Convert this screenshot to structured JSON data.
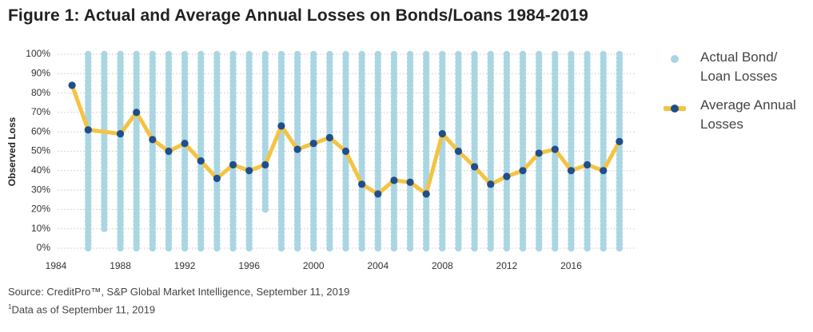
{
  "title": "Figure 1: Actual and Average Annual Losses on Bonds/Loans 1984-2019",
  "source": "Source: CreditPro™, S&P Global Market Intelligence, September 11, 2019",
  "footnote_mark": "1",
  "footnote": "Data as of September 11, 2019",
  "legend": {
    "scatter_label": "Actual Bond/\nLoan Losses",
    "line_label": "Average Annual\nLosses"
  },
  "colors": {
    "scatter": "#a9d6e2",
    "line": "#f5c342",
    "marker": "#1f4e8c"
  },
  "chart_data": {
    "type": "line",
    "title": "Figure 1: Actual and Average Annual Losses on Bonds/Loans 1984-2019",
    "xlabel": "",
    "ylabel": "Observed Loss",
    "xlim": [
      1984,
      2020
    ],
    "ylim": [
      0,
      100
    ],
    "x_ticks": [
      1984,
      1988,
      1992,
      1996,
      2000,
      2004,
      2008,
      2012,
      2016
    ],
    "y_ticks": [
      "0%",
      "10%",
      "20%",
      "30%",
      "40%",
      "50%",
      "60%",
      "70%",
      "80%",
      "90%",
      "100%"
    ],
    "grid": "horizontal dotted",
    "legend_position": "right",
    "series": [
      {
        "name": "Average Annual Losses",
        "x": [
          1985,
          1986,
          1988,
          1989,
          1990,
          1991,
          1992,
          1993,
          1994,
          1995,
          1996,
          1997,
          1998,
          1999,
          2000,
          2001,
          2002,
          2003,
          2004,
          2005,
          2006,
          2007,
          2008,
          2009,
          2010,
          2011,
          2012,
          2013,
          2014,
          2015,
          2016,
          2017,
          2018,
          2019
        ],
        "values": [
          84,
          61,
          59,
          70,
          56,
          50,
          54,
          45,
          36,
          43,
          40,
          43,
          63,
          51,
          54,
          57,
          50,
          33,
          28,
          35,
          34,
          28,
          59,
          50,
          42,
          33,
          37,
          40,
          49,
          51,
          40,
          43,
          40,
          55
        ]
      },
      {
        "name": "Actual Bond/ Loan Losses",
        "type": "scatter",
        "x": [
          1986,
          1987,
          1988,
          1989,
          1990,
          1991,
          1992,
          1993,
          1994,
          1995,
          1996,
          1997,
          1998,
          1999,
          2000,
          2001,
          2002,
          2003,
          2004,
          2005,
          2006,
          2007,
          2008,
          2009,
          2010,
          2011,
          2012,
          2013,
          2014,
          2015,
          2016,
          2017,
          2018,
          2019
        ],
        "range_low": [
          0,
          10,
          0,
          0,
          0,
          0,
          0,
          0,
          0,
          0,
          0,
          20,
          0,
          0,
          0,
          0,
          0,
          0,
          0,
          0,
          0,
          0,
          0,
          0,
          0,
          0,
          0,
          0,
          0,
          0,
          0,
          0,
          0,
          0
        ],
        "range_high": [
          100,
          100,
          100,
          100,
          100,
          100,
          100,
          100,
          100,
          100,
          100,
          100,
          100,
          100,
          100,
          100,
          100,
          100,
          100,
          100,
          100,
          100,
          100,
          100,
          100,
          100,
          100,
          100,
          100,
          100,
          100,
          100,
          100,
          100
        ]
      }
    ]
  }
}
